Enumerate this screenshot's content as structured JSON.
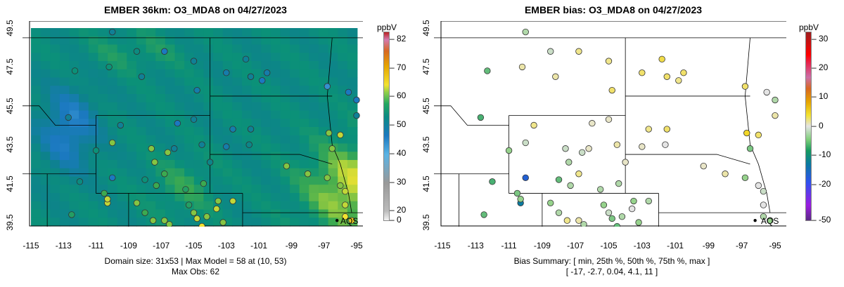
{
  "left": {
    "title": "EMBER 36km: O3_MDA8 on 04/27/2023",
    "units": "ppbV",
    "colorbar_ticks": [
      "82",
      "70",
      "60",
      "50",
      "40",
      "30",
      "20",
      "0"
    ],
    "caption_line1": "Domain size: 31x53 | Max Model = 58 at (10, 53)",
    "caption_line2": "Max Obs: 62",
    "site_label": "AQS"
  },
  "right": {
    "title": "EMBER bias: O3_MDA8 on 04/27/2023",
    "units": "ppbV",
    "colorbar_ticks": [
      "30",
      "20",
      "10",
      "0",
      "-10",
      "-20",
      "-50"
    ],
    "caption_line1": "Bias Summary: [ min, 25th %, 50th %, 75th %, max ]",
    "caption_line2": "[ -17,  -2.7,  0.04,  4.1,  11 ]",
    "site_label": "AQS"
  },
  "x_ticks": [
    "-115",
    "-113",
    "-111",
    "-109",
    "-107",
    "-105",
    "-103",
    "-101",
    "-99",
    "-97",
    "-95"
  ],
  "y_ticks": [
    "49.5",
    "47.5",
    "45.5",
    "43.5",
    "41.5",
    "39.5"
  ]
}
